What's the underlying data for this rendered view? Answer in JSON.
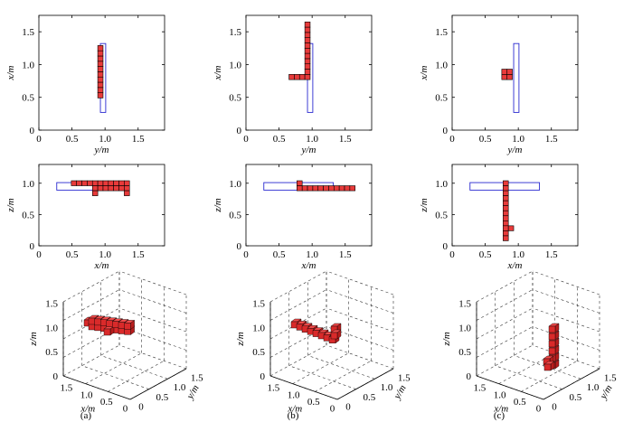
{
  "chart_data": [
    {
      "id": "a-xy",
      "type": "scatter",
      "xlabel": "y/m",
      "ylabel": "x/m",
      "xlim": [
        0,
        1.9
      ],
      "ylim": [
        0,
        1.75
      ],
      "xticks": [
        "0",
        "0.5",
        "1.0",
        "1.5"
      ],
      "yticks": [
        "0",
        "0.5",
        "1.0",
        "1.5"
      ],
      "cell_size": [
        0.08,
        0.08
      ],
      "cells": [
        [
          0.89,
          0.49
        ],
        [
          0.89,
          0.57
        ],
        [
          0.89,
          0.65
        ],
        [
          0.89,
          0.73
        ],
        [
          0.89,
          0.81
        ],
        [
          0.89,
          0.89
        ],
        [
          0.89,
          0.97
        ],
        [
          0.89,
          1.05
        ],
        [
          0.89,
          1.13
        ],
        [
          0.89,
          1.21
        ]
      ],
      "outline": [
        0.93,
        0.27,
        1.01,
        1.32
      ]
    },
    {
      "id": "b-xy",
      "type": "scatter",
      "xlabel": "y/m",
      "ylabel": "x/m",
      "xlim": [
        0,
        1.9
      ],
      "ylim": [
        0,
        1.75
      ],
      "xticks": [
        "0",
        "0.5",
        "1.0",
        "1.5"
      ],
      "yticks": [
        "0",
        "0.5",
        "1.0",
        "1.5"
      ],
      "cell_size": [
        0.08,
        0.08
      ],
      "cells": [
        [
          0.65,
          0.77
        ],
        [
          0.73,
          0.77
        ],
        [
          0.81,
          0.77
        ],
        [
          0.89,
          0.77
        ],
        [
          0.89,
          0.85
        ],
        [
          0.89,
          0.93
        ],
        [
          0.89,
          1.01
        ],
        [
          0.89,
          1.09
        ],
        [
          0.89,
          1.17
        ],
        [
          0.89,
          1.25
        ],
        [
          0.89,
          1.33
        ],
        [
          0.89,
          1.41
        ],
        [
          0.89,
          1.49
        ],
        [
          0.89,
          1.57
        ]
      ],
      "outline": [
        0.93,
        0.27,
        1.01,
        1.32
      ]
    },
    {
      "id": "c-xy",
      "type": "scatter",
      "xlabel": "y/m",
      "ylabel": "x/m",
      "xlim": [
        0,
        1.9
      ],
      "ylim": [
        0,
        1.75
      ],
      "xticks": [
        "0",
        "0.5",
        "1.0",
        "1.5"
      ],
      "yticks": [
        "0",
        "0.5",
        "1.0",
        "1.5"
      ],
      "cell_size": [
        0.08,
        0.08
      ],
      "cells": [
        [
          0.75,
          0.77
        ],
        [
          0.83,
          0.77
        ],
        [
          0.75,
          0.85
        ],
        [
          0.83,
          0.85
        ]
      ],
      "outline": [
        0.93,
        0.27,
        1.01,
        1.32
      ]
    },
    {
      "id": "a-xz",
      "type": "scatter",
      "xlabel": "x/m",
      "ylabel": "z/m",
      "xlim": [
        0,
        1.9
      ],
      "ylim": [
        0,
        1.3
      ],
      "xticks": [
        "0",
        "0.5",
        "1.0",
        "1.5"
      ],
      "yticks": [
        "0",
        "0.5",
        "1.0"
      ],
      "cell_size": [
        0.08,
        0.08
      ],
      "cells": [
        [
          0.49,
          0.96
        ],
        [
          0.57,
          0.96
        ],
        [
          0.65,
          0.96
        ],
        [
          0.73,
          0.96
        ],
        [
          0.81,
          0.96
        ],
        [
          0.89,
          0.96
        ],
        [
          0.97,
          0.96
        ],
        [
          1.05,
          0.96
        ],
        [
          1.13,
          0.96
        ],
        [
          1.21,
          0.96
        ],
        [
          1.29,
          0.96
        ],
        [
          0.81,
          0.88
        ],
        [
          0.89,
          0.88
        ],
        [
          0.97,
          0.88
        ],
        [
          1.05,
          0.88
        ],
        [
          1.13,
          0.88
        ],
        [
          1.21,
          0.88
        ],
        [
          1.29,
          0.88
        ],
        [
          0.81,
          0.8
        ],
        [
          1.29,
          0.8
        ]
      ],
      "outline": [
        0.27,
        0.89,
        1.32,
        1.01
      ]
    },
    {
      "id": "b-xz",
      "type": "scatter",
      "xlabel": "x/m",
      "ylabel": "z/m",
      "xlim": [
        0,
        1.9
      ],
      "ylim": [
        0,
        1.3
      ],
      "xticks": [
        "0",
        "0.5",
        "1.0",
        "1.5"
      ],
      "yticks": [
        "0",
        "0.5",
        "1.0"
      ],
      "cell_size": [
        0.08,
        0.08
      ],
      "cells": [
        [
          0.77,
          0.96
        ],
        [
          0.77,
          0.88
        ],
        [
          0.85,
          0.88
        ],
        [
          0.93,
          0.88
        ],
        [
          1.01,
          0.88
        ],
        [
          1.09,
          0.88
        ],
        [
          1.17,
          0.88
        ],
        [
          1.25,
          0.88
        ],
        [
          1.33,
          0.88
        ],
        [
          1.41,
          0.88
        ],
        [
          1.49,
          0.88
        ],
        [
          1.57,
          0.88
        ]
      ],
      "outline": [
        0.27,
        0.89,
        1.32,
        1.01
      ]
    },
    {
      "id": "c-xz",
      "type": "scatter",
      "xlabel": "x/m",
      "ylabel": "z/m",
      "xlim": [
        0,
        1.9
      ],
      "ylim": [
        0,
        1.3
      ],
      "xticks": [
        "0",
        "0.5",
        "1.0",
        "1.5"
      ],
      "yticks": [
        "0",
        "0.5",
        "1.0"
      ],
      "cell_size": [
        0.08,
        0.08
      ],
      "cells": [
        [
          0.77,
          0.96
        ],
        [
          0.77,
          0.88
        ],
        [
          0.77,
          0.8
        ],
        [
          0.77,
          0.72
        ],
        [
          0.77,
          0.64
        ],
        [
          0.77,
          0.56
        ],
        [
          0.77,
          0.48
        ],
        [
          0.77,
          0.4
        ],
        [
          0.77,
          0.32
        ],
        [
          0.77,
          0.24
        ],
        [
          0.85,
          0.24
        ],
        [
          0.77,
          0.16
        ],
        [
          0.77,
          0.08
        ]
      ],
      "outline": [
        0.27,
        0.89,
        1.32,
        1.01
      ]
    },
    {
      "id": "a-3d",
      "type": "scatter",
      "projection": "3d",
      "xlabel": "x/m",
      "ylabel": "y/m",
      "zlabel": "z/m",
      "xticks": [
        "1.5",
        "1.0",
        "0.5",
        "0"
      ],
      "yticks": [
        "0",
        "0.5",
        "1.0",
        "1.5"
      ],
      "zticks": [
        "0",
        "0.5",
        "1.0",
        "1.5"
      ],
      "caption": "(a)"
    },
    {
      "id": "b-3d",
      "type": "scatter",
      "projection": "3d",
      "xlabel": "x/m",
      "ylabel": "y/m",
      "zlabel": "z/m",
      "xticks": [
        "1.5",
        "1.0",
        "0.5",
        "0"
      ],
      "yticks": [
        "0",
        "0.5",
        "1.0",
        "1.5"
      ],
      "zticks": [
        "0",
        "0.5",
        "1.0",
        "1.5"
      ],
      "caption": "(b)"
    },
    {
      "id": "c-3d",
      "type": "scatter",
      "projection": "3d",
      "xlabel": "x/m",
      "ylabel": "y/m",
      "zlabel": "z/m",
      "xticks": [
        "1.5",
        "1.0",
        "0.5",
        "0"
      ],
      "yticks": [
        "0",
        "0.5",
        "1.0",
        "1.5"
      ],
      "zticks": [
        "0",
        "0.5",
        "1.0",
        "1.5"
      ],
      "caption": "(c)"
    }
  ]
}
